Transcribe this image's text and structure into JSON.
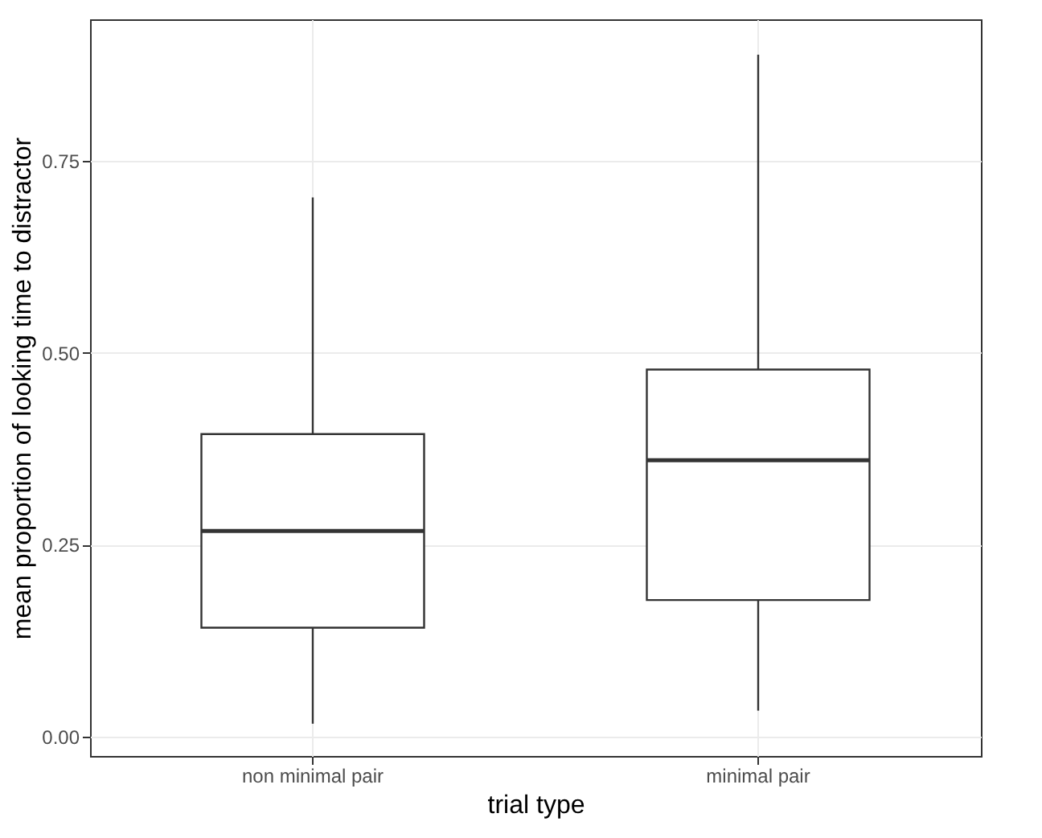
{
  "chart_data": {
    "type": "box",
    "xlabel": "trial type",
    "ylabel": "mean proportion of looking time to distractor",
    "categories": [
      "non minimal pair",
      "minimal pair"
    ],
    "boxes": [
      {
        "low": 0.017,
        "q1": 0.142,
        "median": 0.268,
        "q3": 0.394,
        "high": 0.702
      },
      {
        "low": 0.034,
        "q1": 0.178,
        "median": 0.36,
        "q3": 0.478,
        "high": 0.888
      }
    ],
    "ylim": [
      -0.025,
      0.934
    ],
    "yticks": [
      {
        "value": 0,
        "label": "0.00"
      },
      {
        "value": 0.25,
        "label": "0.25"
      },
      {
        "value": 0.5,
        "label": "0.50"
      },
      {
        "value": 0.75,
        "label": "0.75"
      }
    ],
    "grid": true
  }
}
